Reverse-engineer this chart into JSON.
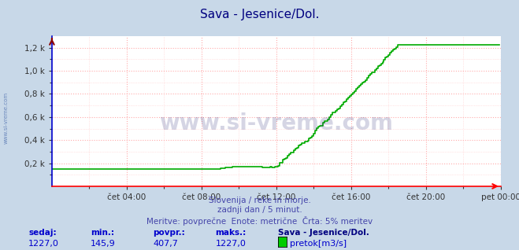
{
  "title": "Sava - Jesenice/Dol.",
  "title_color": "#000080",
  "bg_color": "#c8d8e8",
  "plot_bg_color": "#ffffff",
  "grid_color_major": "#ffaaaa",
  "grid_color_minor": "#ffcccc",
  "line_color": "#00aa00",
  "line_width": 1.2,
  "xlabel_ticks": [
    "čet 04:00",
    "čet 08:00",
    "čet 12:00",
    "čet 16:00",
    "čet 20:00",
    "pet 00:00"
  ],
  "ylabel_labels": [
    "0,2 k",
    "0,4 k",
    "0,6 k",
    "0,8 k",
    "1,0 k",
    "1,2 k"
  ],
  "ymin": 0,
  "ymax": 1300,
  "xmin": 0,
  "xmax": 288,
  "subtitle1": "Slovenija / reke in morje.",
  "subtitle2": "zadnji dan / 5 minut.",
  "subtitle3": "Meritve: povprečne  Enote: metrične  Črta: 5% meritev",
  "subtitle_color": "#4444aa",
  "watermark": "www.si-vreme.com",
  "watermark_color": "#1a1a6e",
  "watermark_alpha": 0.18,
  "side_text": "www.si-vreme.com",
  "side_text_color": "#4466aa",
  "legend_label": "pretok[m3/s]",
  "legend_color": "#00cc00",
  "stats_headers": [
    "sedaj:",
    "min.:",
    "povpr.:",
    "maks.:"
  ],
  "stats_values": [
    "1227,0",
    "145,9",
    "407,7",
    "1227,0"
  ],
  "stats_color": "#0000cc",
  "station_name": "Sava - Jesenice/Dol.",
  "station_color": "#000080",
  "left_spine_color": "#0000cc",
  "bottom_spine_color": "#ff0000",
  "right_spine_color": "#ff0000",
  "top_spine_color": "#ff0000",
  "tick_label_color": "#333333",
  "figsize": [
    6.59,
    3.18
  ],
  "dpi": 100
}
